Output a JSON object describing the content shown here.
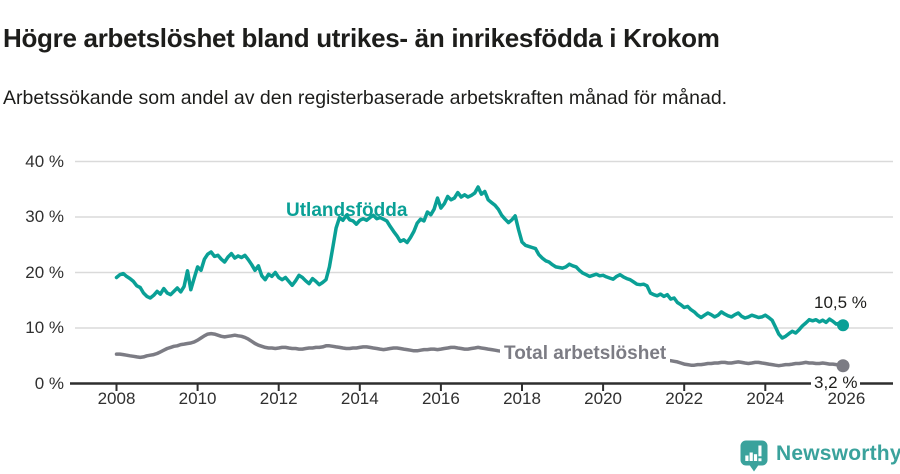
{
  "header": {
    "title": "Högre arbetslöshet bland utrikes- än inrikesfödda i Krokom",
    "subtitle": "Arbetssökande som andel av den registerbaserade arbetskraften månad för månad."
  },
  "chart_data": {
    "type": "line",
    "x_start": 2008.0,
    "x_step": "monthly",
    "xlim": [
      2007.8,
      2026.2
    ],
    "ylim": [
      0,
      40
    ],
    "grid": true,
    "grid_color": "#dadada",
    "axis_color": "#2e2e2e",
    "x_ticks": [
      2008,
      2010,
      2012,
      2014,
      2016,
      2018,
      2020,
      2022,
      2024,
      2026
    ],
    "y_ticks": [
      {
        "value": 0,
        "label": "0 %"
      },
      {
        "value": 10,
        "label": "10 %"
      },
      {
        "value": 20,
        "label": "20 %"
      },
      {
        "value": 30,
        "label": "30 %"
      },
      {
        "value": 40,
        "label": "40 %"
      }
    ],
    "series": [
      {
        "id": "utlandsfodda",
        "name": "Utlandsfödda",
        "color": "#0aa096",
        "end_label": "10,5 %",
        "end_value": 10.5,
        "dot_radius": 6,
        "values": [
          19.1,
          19.6,
          19.8,
          19.3,
          18.9,
          18.4,
          17.6,
          17.3,
          16.3,
          15.7,
          15.4,
          15.9,
          16.6,
          16.1,
          17.1,
          16.3,
          16.0,
          16.6,
          17.2,
          16.5,
          17.5,
          20.3,
          16.9,
          19.0,
          21.0,
          20.4,
          22.4,
          23.3,
          23.7,
          22.9,
          23.1,
          22.4,
          21.9,
          22.8,
          23.4,
          22.6,
          23.0,
          22.7,
          23.1,
          22.3,
          21.4,
          20.4,
          21.2,
          19.4,
          18.7,
          19.7,
          19.3,
          20.0,
          19.1,
          18.7,
          19.1,
          18.4,
          17.7,
          18.5,
          19.5,
          19.1,
          18.5,
          18.0,
          18.9,
          18.4,
          17.8,
          18.2,
          18.7,
          21.0,
          24.5,
          28.0,
          29.9,
          29.4,
          30.3,
          29.5,
          29.3,
          28.7,
          29.4,
          29.7,
          29.4,
          29.9,
          30.3,
          29.7,
          29.9,
          29.6,
          29.3,
          28.3,
          27.4,
          26.6,
          25.6,
          25.9,
          25.4,
          26.3,
          27.4,
          28.9,
          29.6,
          29.3,
          30.9,
          30.4,
          31.4,
          33.4,
          31.6,
          32.4,
          33.7,
          33.1,
          33.4,
          34.4,
          33.6,
          34.0,
          33.6,
          33.9,
          34.3,
          35.4,
          34.1,
          34.6,
          33.1,
          32.6,
          32.1,
          31.4,
          30.3,
          29.6,
          29.0,
          29.5,
          30.2,
          27.7,
          25.5,
          24.9,
          24.7,
          24.5,
          24.3,
          23.2,
          22.6,
          22.1,
          21.9,
          21.4,
          21.0,
          20.9,
          20.8,
          21.0,
          21.5,
          21.2,
          21.0,
          20.4,
          19.9,
          19.6,
          19.3,
          19.5,
          19.7,
          19.4,
          19.5,
          19.2,
          19.0,
          18.8,
          19.3,
          19.6,
          19.2,
          18.9,
          18.7,
          18.3,
          17.9,
          17.8,
          17.9,
          17.6,
          16.3,
          16.0,
          15.8,
          16.1,
          15.7,
          16.0,
          15.2,
          15.4,
          14.6,
          14.2,
          13.7,
          13.9,
          13.3,
          12.9,
          12.3,
          11.9,
          12.3,
          12.7,
          12.4,
          12.0,
          12.3,
          12.9,
          12.5,
          12.2,
          12.0,
          12.4,
          12.7,
          12.1,
          11.8,
          12.0,
          12.3,
          12.1,
          11.9,
          12.0,
          12.3,
          11.9,
          11.4,
          10.2,
          8.9,
          8.2,
          8.5,
          9.0,
          9.4,
          9.1,
          9.7,
          10.4,
          10.9,
          11.5,
          11.3,
          11.5,
          11.1,
          11.4,
          11.0,
          11.6,
          11.2,
          10.7,
          10.9,
          10.5
        ]
      },
      {
        "id": "total",
        "name": "Total arbetslöshet",
        "color": "#7c7c84",
        "end_label": "3,2 %",
        "end_value": 3.2,
        "dot_radius": 6.5,
        "values": [
          5.3,
          5.3,
          5.2,
          5.1,
          5.0,
          4.9,
          4.8,
          4.7,
          4.8,
          5.0,
          5.1,
          5.2,
          5.4,
          5.7,
          6.0,
          6.3,
          6.5,
          6.7,
          6.8,
          7.0,
          7.1,
          7.2,
          7.3,
          7.5,
          7.8,
          8.2,
          8.6,
          8.9,
          9.0,
          8.9,
          8.7,
          8.5,
          8.4,
          8.5,
          8.6,
          8.7,
          8.6,
          8.5,
          8.3,
          8.0,
          7.6,
          7.2,
          6.9,
          6.7,
          6.5,
          6.4,
          6.4,
          6.3,
          6.4,
          6.5,
          6.5,
          6.4,
          6.3,
          6.3,
          6.2,
          6.2,
          6.3,
          6.4,
          6.4,
          6.5,
          6.5,
          6.6,
          6.8,
          6.8,
          6.7,
          6.6,
          6.5,
          6.4,
          6.3,
          6.3,
          6.4,
          6.4,
          6.5,
          6.6,
          6.6,
          6.5,
          6.4,
          6.3,
          6.2,
          6.1,
          6.2,
          6.3,
          6.4,
          6.4,
          6.3,
          6.2,
          6.1,
          6.0,
          5.9,
          5.9,
          6.0,
          6.1,
          6.1,
          6.2,
          6.2,
          6.1,
          6.2,
          6.3,
          6.4,
          6.5,
          6.5,
          6.4,
          6.3,
          6.2,
          6.2,
          6.3,
          6.4,
          6.5,
          6.4,
          6.3,
          6.2,
          6.1,
          6.0,
          5.9,
          5.8,
          5.7,
          5.6,
          5.6,
          5.5,
          5.5,
          5.4,
          5.4,
          5.3,
          5.3,
          5.2,
          5.2,
          5.1,
          5.1,
          5.0,
          5.0,
          4.9,
          4.9,
          4.8,
          4.8,
          4.7,
          4.7,
          4.6,
          4.6,
          4.5,
          4.5,
          4.4,
          4.4,
          4.5,
          4.5,
          4.6,
          4.8,
          5.1,
          5.4,
          5.6,
          5.6,
          5.5,
          5.4,
          5.3,
          5.2,
          5.1,
          5.0,
          4.9,
          4.8,
          4.7,
          4.6,
          4.5,
          4.4,
          4.3,
          4.2,
          4.1,
          4.0,
          3.9,
          3.7,
          3.5,
          3.4,
          3.3,
          3.3,
          3.4,
          3.4,
          3.5,
          3.6,
          3.6,
          3.7,
          3.7,
          3.8,
          3.8,
          3.7,
          3.7,
          3.8,
          3.9,
          3.8,
          3.7,
          3.6,
          3.7,
          3.8,
          3.8,
          3.7,
          3.6,
          3.5,
          3.4,
          3.3,
          3.2,
          3.3,
          3.4,
          3.4,
          3.5,
          3.6,
          3.6,
          3.7,
          3.8,
          3.7,
          3.7,
          3.6,
          3.6,
          3.7,
          3.6,
          3.5,
          3.5,
          3.4,
          3.3,
          3.2
        ]
      }
    ]
  },
  "footer": {
    "brand": "Newsworthy",
    "brand_color": "#3aa29c",
    "logo_icon": "newsworthy-bar-chart-bubble-icon"
  }
}
